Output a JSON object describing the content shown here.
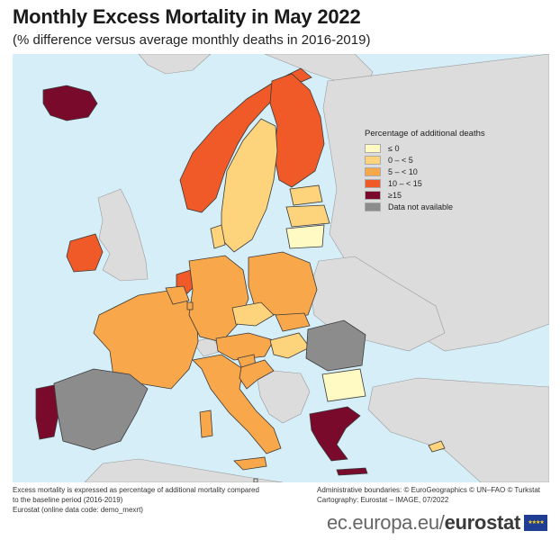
{
  "title": "Monthly Excess Mortality in May 2022",
  "subtitle": "(% difference versus average monthly deaths in 2016-2019)",
  "legend": {
    "title": "Percentage of additional deaths",
    "items": [
      {
        "label": "≤ 0",
        "color": "#fff9c4"
      },
      {
        "label": "0 – < 5",
        "color": "#fdd37c"
      },
      {
        "label": "5 – < 10",
        "color": "#f9a74b"
      },
      {
        "label": "10 – < 15",
        "color": "#ef5a28"
      },
      {
        "label": "≥15",
        "color": "#7a0a2c"
      },
      {
        "label": "Data not available",
        "color": "#8c8c8c"
      }
    ]
  },
  "notes": {
    "left_1": "Excess mortality is expressed as percentage of additional mortality compared",
    "left_2": "to the baseline period (2016-2019)",
    "left_3": "Eurostat (online data code: demo_mexrt)",
    "right_1": "Administrative boundaries: © EuroGeographics © UN–FAO © Turkstat",
    "right_2": "Cartography: Eurostat – IMAGE, 07/2022"
  },
  "footer": {
    "site": "ec.europa.eu/",
    "brand": "eurostat"
  },
  "map": {
    "colors": {
      "sea": "#d6eef8",
      "non_eu_land": "#dcdcdc",
      "border": "#3a3a3a"
    }
  }
}
